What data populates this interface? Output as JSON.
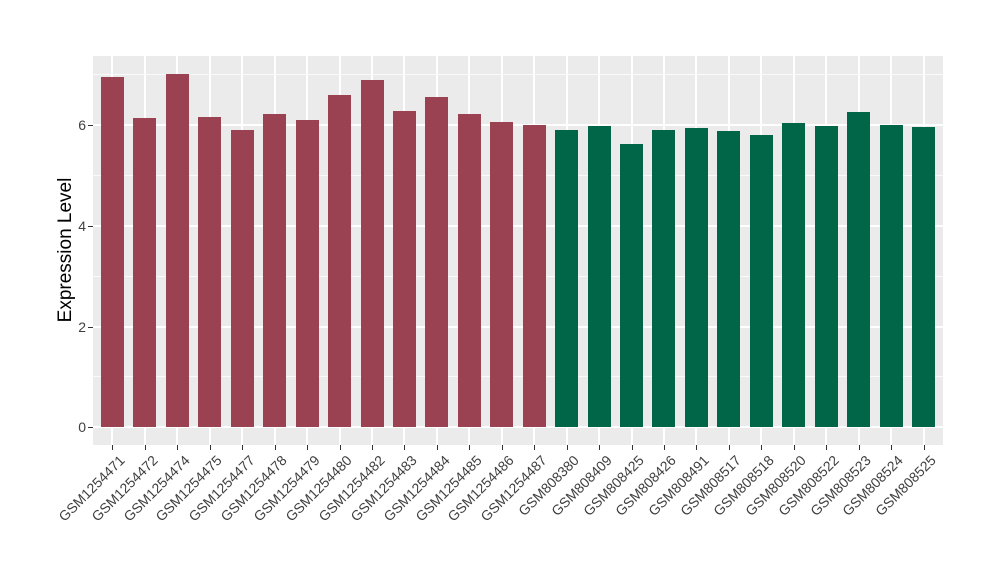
{
  "chart_data": {
    "type": "bar",
    "title": "",
    "xlabel": "",
    "ylabel": "Expression Level",
    "ylim": [
      -0.35,
      7.37
    ],
    "yticks": [
      0,
      2,
      4,
      6
    ],
    "yminor_ticks": [
      1,
      3,
      5,
      7
    ],
    "grid": "white major and minor gridlines on gray panel",
    "legend_position": "none",
    "panel_bg_color": "#EBEBEB",
    "grid_color": "#FFFFFF",
    "group_colors": {
      "group1": "#9A4251",
      "group2": "#006647"
    },
    "bars": [
      {
        "label": "GSM1254471",
        "value": 6.95,
        "group": "group1"
      },
      {
        "label": "GSM1254472",
        "value": 6.14,
        "group": "group1"
      },
      {
        "label": "GSM1254474",
        "value": 7.02,
        "group": "group1"
      },
      {
        "label": "GSM1254475",
        "value": 6.16,
        "group": "group1"
      },
      {
        "label": "GSM1254477",
        "value": 5.91,
        "group": "group1"
      },
      {
        "label": "GSM1254478",
        "value": 6.22,
        "group": "group1"
      },
      {
        "label": "GSM1254479",
        "value": 6.1,
        "group": "group1"
      },
      {
        "label": "GSM1254480",
        "value": 6.6,
        "group": "group1"
      },
      {
        "label": "GSM1254482",
        "value": 6.9,
        "group": "group1"
      },
      {
        "label": "GSM1254483",
        "value": 6.28,
        "group": "group1"
      },
      {
        "label": "GSM1254484",
        "value": 6.55,
        "group": "group1"
      },
      {
        "label": "GSM1254485",
        "value": 6.22,
        "group": "group1"
      },
      {
        "label": "GSM1254486",
        "value": 6.07,
        "group": "group1"
      },
      {
        "label": "GSM1254487",
        "value": 6.01,
        "group": "group1"
      },
      {
        "label": "GSM808380",
        "value": 5.9,
        "group": "group2"
      },
      {
        "label": "GSM808409",
        "value": 5.98,
        "group": "group2"
      },
      {
        "label": "GSM808425",
        "value": 5.62,
        "group": "group2"
      },
      {
        "label": "GSM808426",
        "value": 5.9,
        "group": "group2"
      },
      {
        "label": "GSM808491",
        "value": 5.95,
        "group": "group2"
      },
      {
        "label": "GSM808517",
        "value": 5.88,
        "group": "group2"
      },
      {
        "label": "GSM808518",
        "value": 5.8,
        "group": "group2"
      },
      {
        "label": "GSM808520",
        "value": 6.05,
        "group": "group2"
      },
      {
        "label": "GSM808522",
        "value": 5.98,
        "group": "group2"
      },
      {
        "label": "GSM808523",
        "value": 6.26,
        "group": "group2"
      },
      {
        "label": "GSM808524",
        "value": 6.0,
        "group": "group2"
      },
      {
        "label": "GSM808525",
        "value": 5.96,
        "group": "group2"
      }
    ]
  }
}
